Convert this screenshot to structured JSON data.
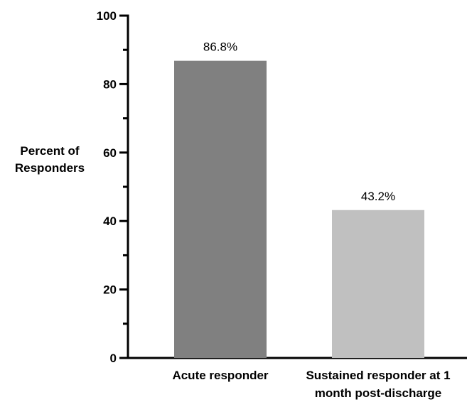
{
  "chart_data": {
    "type": "bar",
    "ylabel": "Percent of Responders",
    "categories": [
      "Acute responder",
      "Sustained responder at 1 month post-discharge"
    ],
    "values": [
      86.8,
      43.2
    ],
    "value_labels": [
      "86.8%",
      "43.2%"
    ],
    "colors": [
      "#808080",
      "#c0c0c0"
    ],
    "ylim": [
      0,
      100
    ],
    "yticks": [
      0,
      20,
      40,
      60,
      80,
      100
    ],
    "minor_yticks": [
      10,
      30,
      50,
      70,
      90
    ],
    "grid": false
  }
}
